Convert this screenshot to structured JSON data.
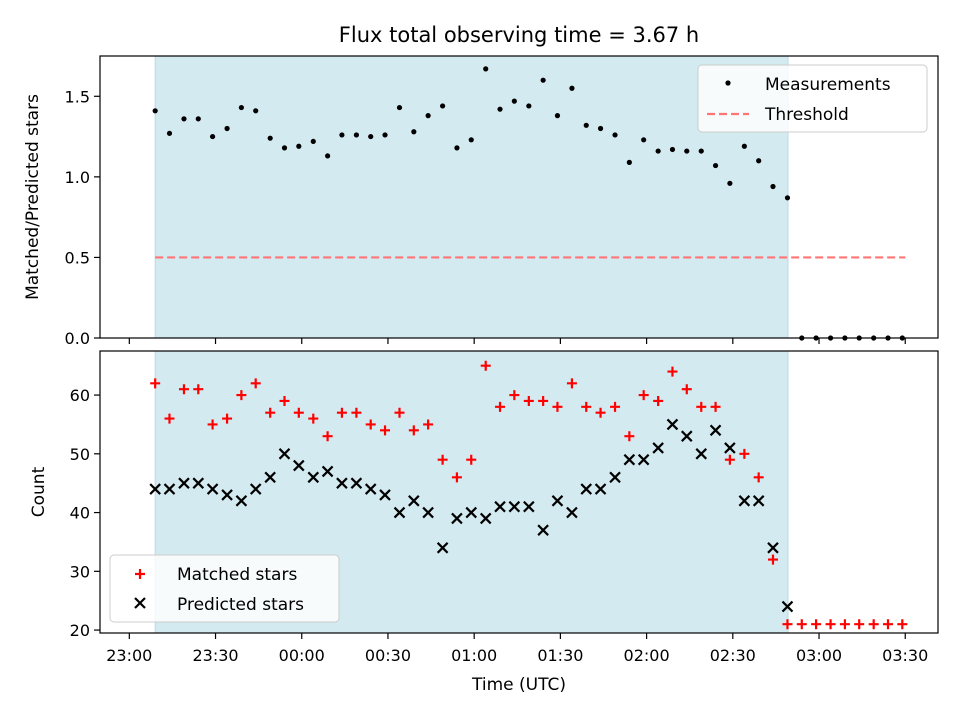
{
  "chart_data": {
    "title": "Flux total observing time = 3.67 h",
    "xlabel": "Time (UTC)",
    "x_unit": "hours after 23:00 UTC",
    "x_ticks": [
      {
        "label": "23:00",
        "value": 0
      },
      {
        "label": "23:30",
        "value": 0.5
      },
      {
        "label": "00:00",
        "value": 1.0
      },
      {
        "label": "00:30",
        "value": 1.5
      },
      {
        "label": "01:00",
        "value": 2.0
      },
      {
        "label": "01:30",
        "value": 2.5
      },
      {
        "label": "02:00",
        "value": 3.0
      },
      {
        "label": "02:30",
        "value": 3.5
      },
      {
        "label": "03:00",
        "value": 4.0
      },
      {
        "label": "03:30",
        "value": 4.5
      }
    ],
    "xlim": [
      -0.17,
      4.69
    ],
    "observing_span": [
      0.15,
      3.82
    ],
    "colors": {
      "span": "#d4eaf1",
      "span_edge": "#b9dbe6",
      "measurements": "#000000",
      "threshold": "#ff7575",
      "matched": "#ff0000",
      "predicted": "#000000"
    },
    "x": [
      0.15,
      0.233,
      0.317,
      0.4,
      0.483,
      0.567,
      0.65,
      0.733,
      0.817,
      0.9,
      0.983,
      1.067,
      1.15,
      1.233,
      1.317,
      1.4,
      1.483,
      1.567,
      1.65,
      1.733,
      1.817,
      1.9,
      1.983,
      2.067,
      2.15,
      2.233,
      2.317,
      2.4,
      2.483,
      2.567,
      2.65,
      2.733,
      2.817,
      2.9,
      2.983,
      3.067,
      3.15,
      3.233,
      3.317,
      3.4,
      3.483,
      3.567,
      3.65,
      3.733,
      3.817,
      3.9,
      3.983,
      4.067,
      4.15,
      4.233,
      4.317,
      4.4,
      4.483
    ],
    "panels": [
      {
        "type": "scatter",
        "ylabel": "Matched/Predicted stars",
        "ylim": [
          0,
          1.75
        ],
        "y_ticks": [
          "0.0",
          "0.5",
          "1.0",
          "1.5"
        ],
        "y_tick_values": [
          0,
          0.5,
          1.0,
          1.5
        ],
        "legend_position": "top-right",
        "series": [
          {
            "name": "Measurements",
            "marker": "dot",
            "values": [
              1.41,
              1.27,
              1.36,
              1.36,
              1.25,
              1.3,
              1.43,
              1.41,
              1.24,
              1.18,
              1.19,
              1.22,
              1.13,
              1.26,
              1.26,
              1.25,
              1.26,
              1.43,
              1.28,
              1.38,
              1.44,
              1.18,
              1.23,
              1.67,
              1.42,
              1.47,
              1.44,
              1.6,
              1.38,
              1.55,
              1.32,
              1.3,
              1.26,
              1.09,
              1.23,
              1.16,
              1.17,
              1.16,
              1.16,
              1.07,
              0.96,
              1.19,
              1.1,
              0.94,
              0.87,
              0,
              0,
              0,
              0,
              0,
              0,
              0,
              0
            ]
          },
          {
            "name": "Threshold",
            "type": "line",
            "style": "dashed",
            "x_range": [
              0.15,
              4.5
            ],
            "value": 0.5
          }
        ]
      },
      {
        "type": "scatter",
        "ylabel": "Count",
        "ylim": [
          19.5,
          67.5
        ],
        "y_ticks": [
          "20",
          "30",
          "40",
          "50",
          "60"
        ],
        "y_tick_values": [
          20,
          30,
          40,
          50,
          60
        ],
        "legend_position": "bottom-left",
        "series": [
          {
            "name": "Matched stars",
            "marker": "plus",
            "values": [
              62,
              56,
              61,
              61,
              55,
              56,
              60,
              62,
              57,
              59,
              57,
              56,
              53,
              57,
              57,
              55,
              54,
              57,
              54,
              55,
              49,
              46,
              49,
              65,
              58,
              60,
              59,
              59,
              58,
              62,
              58,
              57,
              58,
              53,
              60,
              59,
              64,
              61,
              58,
              58,
              49,
              50,
              46,
              32,
              21,
              21,
              21,
              21,
              21,
              21,
              21,
              21,
              21
            ]
          },
          {
            "name": "Predicted stars",
            "marker": "x",
            "values": [
              44,
              44,
              45,
              45,
              44,
              43,
              42,
              44,
              46,
              50,
              48,
              46,
              47,
              45,
              45,
              44,
              43,
              40,
              42,
              40,
              34,
              39,
              40,
              39,
              41,
              41,
              41,
              37,
              42,
              40,
              44,
              44,
              46,
              49,
              49,
              51,
              55,
              53,
              50,
              54,
              51,
              42,
              42,
              34,
              24
            ]
          }
        ]
      }
    ]
  }
}
